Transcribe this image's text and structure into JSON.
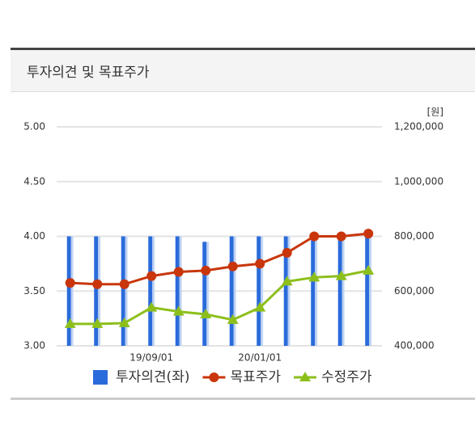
{
  "chart_data": {
    "type": "combo",
    "title": "투자의견 및 목표주가",
    "y2_label": "[원]",
    "categories": [
      null,
      null,
      null,
      "19/09/01",
      null,
      null,
      null,
      "20/01/01",
      null,
      null,
      null,
      null
    ],
    "series": [
      {
        "name": "투자의견(좌)",
        "type": "bar",
        "axis": "y",
        "color": "#2a6bdb",
        "values": [
          4,
          4,
          4,
          4,
          4,
          3.95,
          4,
          4,
          4,
          4,
          4,
          4
        ]
      },
      {
        "name": "목표주가",
        "type": "line",
        "marker": "circle",
        "axis": "y2",
        "color": "#c9360c",
        "values": [
          630000,
          625000,
          625000,
          655000,
          670000,
          675000,
          690000,
          700000,
          740000,
          800000,
          800000,
          810000
        ]
      },
      {
        "name": "수정주가",
        "type": "line",
        "marker": "triangle",
        "axis": "y2",
        "color": "#8dbf1b",
        "values": [
          480000,
          480000,
          483000,
          540000,
          525000,
          515000,
          495000,
          540000,
          635000,
          650000,
          655000,
          675000
        ]
      }
    ],
    "ylim": [
      3,
      5
    ],
    "yticks": [
      {
        "value": 3,
        "label": "3.00"
      },
      {
        "value": 3.5,
        "label": "3.50"
      },
      {
        "value": 4,
        "label": "4.00"
      },
      {
        "value": 4.5,
        "label": "4.50"
      },
      {
        "value": 5,
        "label": "5.00"
      }
    ],
    "y2lim": [
      400000,
      1200000
    ],
    "y2ticks": [
      {
        "value": 400000,
        "label": "400,000"
      },
      {
        "value": 600000,
        "label": "600,000"
      },
      {
        "value": 800000,
        "label": "800,000"
      },
      {
        "value": 1000000,
        "label": "1,000,000"
      },
      {
        "value": 1200000,
        "label": "1,200,000"
      }
    ],
    "grid": true,
    "legend": "bottom"
  }
}
